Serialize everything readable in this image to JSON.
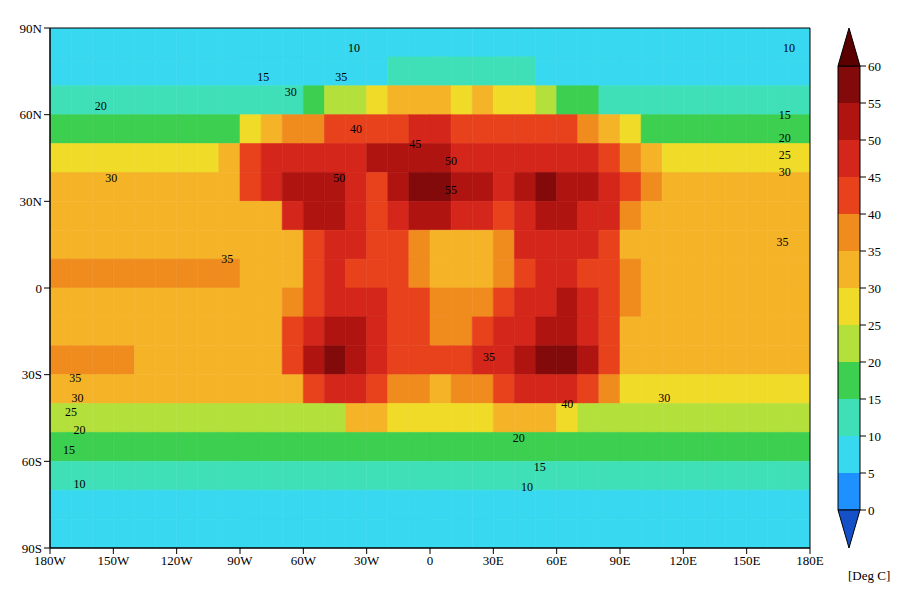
{
  "chart_data": {
    "type": "heatmap",
    "xlim": [
      -180,
      180
    ],
    "ylim": [
      -90,
      90
    ],
    "xticks": [
      {
        "value": -180,
        "label": "180W"
      },
      {
        "value": -150,
        "label": "150W"
      },
      {
        "value": -120,
        "label": "120W"
      },
      {
        "value": -90,
        "label": "90W"
      },
      {
        "value": -60,
        "label": "60W"
      },
      {
        "value": -30,
        "label": "30W"
      },
      0,
      {
        "value": 30,
        "label": "30E"
      },
      {
        "value": 60,
        "label": "60E"
      },
      {
        "value": 90,
        "label": "90E"
      },
      {
        "value": 120,
        "label": "120E"
      },
      {
        "value": 150,
        "label": "150E"
      },
      {
        "value": 180,
        "label": "180E"
      }
    ],
    "yticks": [
      {
        "value": -90,
        "label": "90S"
      },
      {
        "value": -60,
        "label": "60S"
      },
      {
        "value": -30,
        "label": "30S"
      },
      0,
      {
        "value": 30,
        "label": "30N"
      },
      {
        "value": 60,
        "label": "60N"
      },
      {
        "value": 90,
        "label": "90N"
      }
    ],
    "x": [
      -175,
      -165,
      -155,
      -145,
      -135,
      -125,
      -115,
      -105,
      -95,
      -85,
      -75,
      -65,
      -55,
      -45,
      -35,
      -25,
      -15,
      -5,
      5,
      15,
      25,
      35,
      45,
      55,
      65,
      75,
      85,
      95,
      105,
      115,
      125,
      135,
      145,
      155,
      165,
      175
    ],
    "y": [
      85,
      75,
      65,
      55,
      45,
      35,
      25,
      15,
      5,
      -5,
      -15,
      -25,
      -35,
      -45,
      -55,
      -65,
      -75,
      -85
    ],
    "values": [
      [
        7,
        7,
        7,
        7,
        7,
        7,
        7,
        7,
        7,
        7,
        7,
        7,
        7,
        7,
        7,
        7,
        7,
        7,
        7,
        7,
        7,
        7,
        7,
        7,
        7,
        7,
        7,
        7,
        7,
        7,
        7,
        7,
        7,
        7,
        7,
        7
      ],
      [
        9,
        9,
        9,
        9,
        9,
        9,
        9,
        9,
        9,
        9,
        9,
        9,
        9,
        9,
        9,
        9,
        12,
        12,
        12,
        12,
        12,
        12,
        12,
        9,
        9,
        9,
        9,
        9,
        9,
        7,
        7,
        7,
        9,
        9,
        9,
        9
      ],
      [
        13,
        13,
        13,
        13,
        13,
        13,
        13,
        13,
        13,
        13,
        13,
        14,
        16,
        20,
        22,
        28,
        30,
        32,
        30,
        28,
        30,
        28,
        25,
        22,
        18,
        15,
        13,
        13,
        13,
        13,
        13,
        13,
        13,
        13,
        13,
        13
      ],
      [
        19,
        19,
        19,
        19,
        19,
        19,
        19,
        19,
        19,
        25,
        30,
        35,
        38,
        40,
        42,
        42,
        44,
        45,
        45,
        44,
        42,
        42,
        42,
        42,
        40,
        35,
        30,
        25,
        19,
        19,
        19,
        19,
        19,
        19,
        19,
        19
      ],
      [
        26,
        26,
        26,
        26,
        26,
        26,
        26,
        26,
        30,
        40,
        45,
        45,
        46,
        48,
        48,
        50,
        50,
        50,
        50,
        49,
        48,
        48,
        48,
        48,
        47,
        46,
        42,
        35,
        30,
        26,
        26,
        26,
        26,
        26,
        26,
        26
      ],
      [
        30,
        30,
        30,
        30,
        30,
        30,
        30,
        30,
        30,
        40,
        48,
        52,
        52,
        50,
        48,
        42,
        50,
        55,
        55,
        53,
        50,
        45,
        52,
        55,
        52,
        50,
        45,
        40,
        35,
        30,
        30,
        30,
        30,
        30,
        30,
        30
      ],
      [
        32,
        32,
        32,
        32,
        32,
        32,
        32,
        32,
        32,
        32,
        32,
        45,
        52,
        53,
        45,
        40,
        48,
        50,
        50,
        48,
        47,
        40,
        48,
        52,
        50,
        48,
        45,
        38,
        32,
        32,
        32,
        32,
        32,
        32,
        32,
        32
      ],
      [
        34,
        34,
        34,
        34,
        34,
        34,
        33,
        33,
        33,
        33,
        33,
        33,
        42,
        45,
        45,
        43,
        42,
        38,
        33,
        33,
        34,
        38,
        45,
        47,
        47,
        45,
        40,
        33,
        33,
        33,
        33,
        33,
        33,
        33,
        33,
        33
      ],
      [
        35,
        35,
        35,
        35,
        35,
        35,
        35,
        35,
        35,
        34,
        34,
        34,
        40,
        45,
        43,
        42,
        42,
        35,
        33,
        33,
        33,
        35,
        42,
        45,
        45,
        43,
        42,
        38,
        33,
        33,
        33,
        33,
        33,
        33,
        33,
        33
      ],
      [
        34,
        34,
        34,
        34,
        34,
        34,
        34,
        34,
        34,
        34,
        34,
        38,
        42,
        48,
        48,
        45,
        42,
        40,
        35,
        35,
        38,
        42,
        45,
        48,
        50,
        45,
        42,
        38,
        33,
        33,
        33,
        33,
        33,
        33,
        33,
        33
      ],
      [
        33,
        33,
        33,
        33,
        32,
        32,
        30,
        30,
        30,
        30,
        32,
        40,
        48,
        52,
        52,
        48,
        42,
        40,
        38,
        38,
        42,
        45,
        48,
        50,
        52,
        48,
        42,
        32,
        32,
        32,
        32,
        32,
        32,
        32,
        32,
        32
      ],
      [
        35,
        35,
        35,
        35,
        31,
        31,
        31,
        31,
        31,
        31,
        31,
        42,
        52,
        55,
        52,
        48,
        42,
        40,
        40,
        42,
        45,
        48,
        52,
        55,
        55,
        50,
        42,
        31,
        31,
        31,
        31,
        31,
        31,
        31,
        31,
        31
      ],
      [
        34,
        34,
        34,
        30,
        30,
        30,
        30,
        30,
        30,
        30,
        30,
        30,
        42,
        48,
        45,
        40,
        38,
        35,
        33,
        35,
        38,
        42,
        45,
        48,
        45,
        42,
        35,
        29,
        29,
        29,
        29,
        29,
        29,
        29,
        29,
        29
      ],
      [
        22,
        22,
        22,
        22,
        22,
        22,
        22,
        22,
        22,
        22,
        22,
        22,
        22,
        22,
        30,
        30,
        28,
        28,
        27,
        27,
        28,
        30,
        32,
        30,
        28,
        22,
        22,
        22,
        22,
        22,
        22,
        22,
        22,
        22,
        22,
        22
      ],
      [
        16,
        16,
        16,
        16,
        16,
        16,
        16,
        16,
        16,
        16,
        16,
        16,
        16,
        16,
        16,
        16,
        16,
        16,
        16,
        16,
        16,
        16,
        19,
        16,
        16,
        16,
        16,
        16,
        16,
        16,
        16,
        16,
        16,
        16,
        16,
        16
      ],
      [
        11,
        11,
        11,
        11,
        11,
        11,
        11,
        11,
        11,
        11,
        11,
        11,
        11,
        11,
        11,
        11,
        11,
        11,
        11,
        11,
        11,
        11,
        11,
        11,
        11,
        11,
        11,
        11,
        11,
        11,
        11,
        11,
        11,
        11,
        11,
        11
      ],
      [
        8,
        8,
        8,
        8,
        8,
        8,
        8,
        8,
        8,
        8,
        8,
        8,
        8,
        8,
        8,
        8,
        8,
        8,
        8,
        8,
        8,
        8,
        8,
        8,
        8,
        8,
        8,
        8,
        8,
        8,
        8,
        8,
        8,
        8,
        8,
        8
      ],
      [
        6,
        6,
        6,
        6,
        6,
        6,
        6,
        6,
        6,
        6,
        6,
        6,
        6,
        6,
        6,
        6,
        6,
        6,
        6,
        6,
        6,
        6,
        6,
        6,
        6,
        6,
        6,
        6,
        6,
        6,
        6,
        6,
        6,
        6,
        6,
        6
      ]
    ],
    "colorbar": {
      "range": [
        0,
        60
      ],
      "ticks": [
        0,
        5,
        10,
        15,
        20,
        25,
        30,
        35,
        40,
        45,
        50,
        55,
        60
      ],
      "label": "[Deg C]"
    },
    "annotations": [
      {
        "x": -36,
        "y": 83,
        "value": 10
      },
      {
        "x": 170,
        "y": 83,
        "value": 10
      },
      {
        "x": -79,
        "y": 73,
        "value": 15
      },
      {
        "x": -66,
        "y": 68,
        "value": 30
      },
      {
        "x": -42,
        "y": 73,
        "value": 35
      },
      {
        "x": 168,
        "y": 60,
        "value": 15
      },
      {
        "x": -156,
        "y": 63,
        "value": 20
      },
      {
        "x": 168,
        "y": 52,
        "value": 20
      },
      {
        "x": 168,
        "y": 46,
        "value": 25
      },
      {
        "x": 168,
        "y": 40,
        "value": 30
      },
      {
        "x": -151,
        "y": 38,
        "value": 30
      },
      {
        "x": 167,
        "y": 16,
        "value": 35
      },
      {
        "x": -96,
        "y": 10,
        "value": 35
      },
      {
        "x": -168,
        "y": -31,
        "value": 35
      },
      {
        "x": -167,
        "y": -38,
        "value": 30
      },
      {
        "x": -170,
        "y": -43,
        "value": 25
      },
      {
        "x": -166,
        "y": -49,
        "value": 20
      },
      {
        "x": -171,
        "y": -56,
        "value": 15
      },
      {
        "x": -166,
        "y": -68,
        "value": 10
      },
      {
        "x": 46,
        "y": -69,
        "value": 10
      },
      {
        "x": 52,
        "y": -62,
        "value": 15
      },
      {
        "x": 42,
        "y": -52,
        "value": 20
      },
      {
        "x": 111,
        "y": -38,
        "value": 30
      },
      {
        "x": 65,
        "y": -40,
        "value": 40
      },
      {
        "x": -35,
        "y": 55,
        "value": 40
      },
      {
        "x": -7,
        "y": 50,
        "value": 45
      },
      {
        "x": 10,
        "y": 44,
        "value": 50
      },
      {
        "x": 10,
        "y": 34,
        "value": 55
      },
      {
        "x": -43,
        "y": 38,
        "value": 50
      },
      {
        "x": 28,
        "y": -24,
        "value": 35
      }
    ]
  }
}
